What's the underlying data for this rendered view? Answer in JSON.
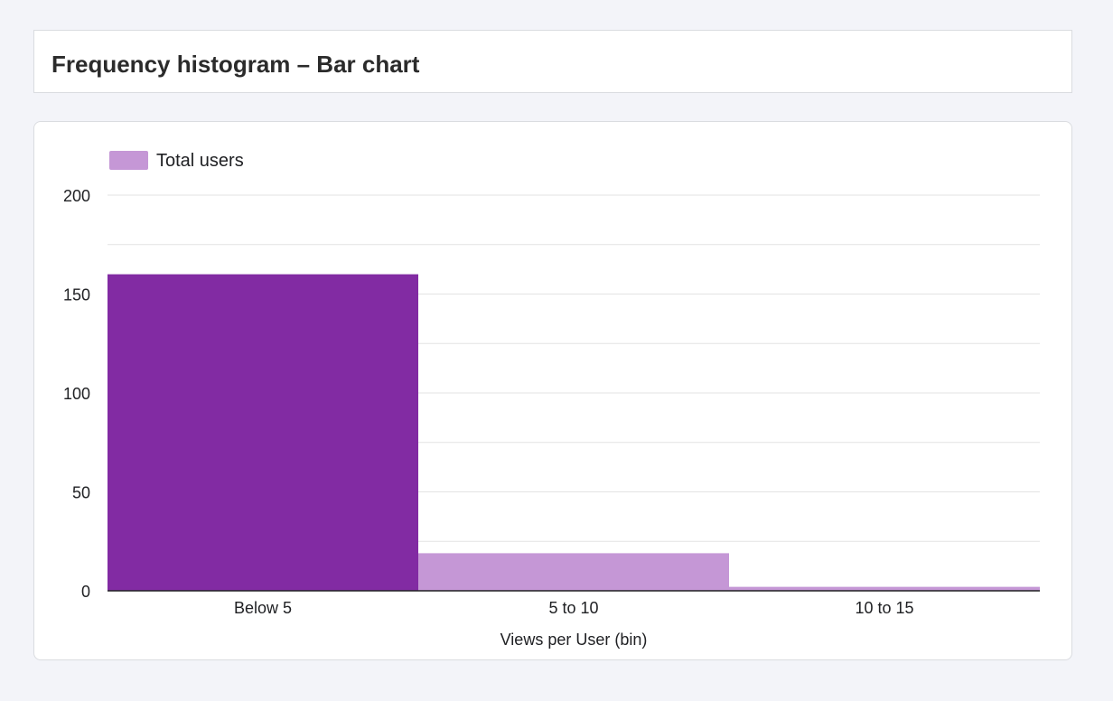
{
  "page": {
    "title": "Frequency histogram – Bar chart"
  },
  "colors": {
    "highlight_bar": "#822ba3",
    "bar": "#c597d6",
    "grid": "#e3e3e3",
    "axis": "#202124"
  },
  "chart_data": {
    "type": "bar",
    "categories": [
      "Below 5",
      "5 to 10",
      "10 to 15"
    ],
    "series": [
      {
        "name": "Total users",
        "values": [
          160,
          19,
          2
        ]
      }
    ],
    "highlighted_index": 0,
    "xlabel": "Views per User (bin)",
    "ylabel": "",
    "ylim": [
      0,
      200
    ],
    "yticks": [
      0,
      50,
      100,
      150,
      200
    ],
    "grid": true,
    "minor_grid": true,
    "legend": "top-left"
  }
}
